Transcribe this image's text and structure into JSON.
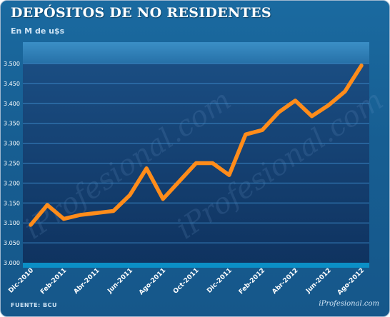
{
  "header": {
    "title": "DEPÓSITOS DE NO RESIDENTES",
    "subtitle": "En M de u$s"
  },
  "footer": {
    "source": "FUENTE: BCU",
    "brand": "iProfesional.com"
  },
  "watermark_text": "iProfesional.com",
  "colors": {
    "background": "#175e92",
    "plot_area": "#123f6e",
    "plot_header": "#2d7db5",
    "plot_footer": "#0b8fc6",
    "line": "#ff8c1a",
    "gridline": "#3f8fcf",
    "text": "#ffffff"
  },
  "chart_data": {
    "type": "line",
    "title": "DEPÓSITOS DE NO RESIDENTES",
    "subtitle": "En M de u$s",
    "xlabel": "",
    "ylabel": "",
    "ylim": [
      3000,
      3500
    ],
    "yticks": [
      "3.000",
      "3.050",
      "3.100",
      "3.150",
      "3.200",
      "3.250",
      "3.300",
      "3.350",
      "3.400",
      "3.450",
      "3.500"
    ],
    "xtick_labels": [
      "Dic-2010",
      "Feb-2011",
      "Abr-2011",
      "Jun-2011",
      "Ago-2011",
      "Oct-2011",
      "Dic-2011",
      "Feb-2012",
      "Abr-2012",
      "Jun-2012",
      "Ago-2012"
    ],
    "x": [
      "Dic-2010",
      "Ene-2011",
      "Feb-2011",
      "Mar-2011",
      "Abr-2011",
      "May-2011",
      "Jun-2011",
      "Jul-2011",
      "Ago-2011",
      "Sep-2011",
      "Oct-2011",
      "Nov-2011",
      "Dic-2011",
      "Ene-2012",
      "Feb-2012",
      "Mar-2012",
      "Abr-2012",
      "May-2012",
      "Jun-2012",
      "Jul-2012",
      "Ago-2012"
    ],
    "series": [
      {
        "values": [
          3095,
          3145,
          3110,
          3120,
          3125,
          3130,
          3170,
          3237,
          3160,
          3205,
          3250,
          3250,
          3220,
          3322,
          3333,
          3378,
          3407,
          3368,
          3395,
          3430,
          3495
        ]
      }
    ],
    "grid": true,
    "legend": "none"
  }
}
